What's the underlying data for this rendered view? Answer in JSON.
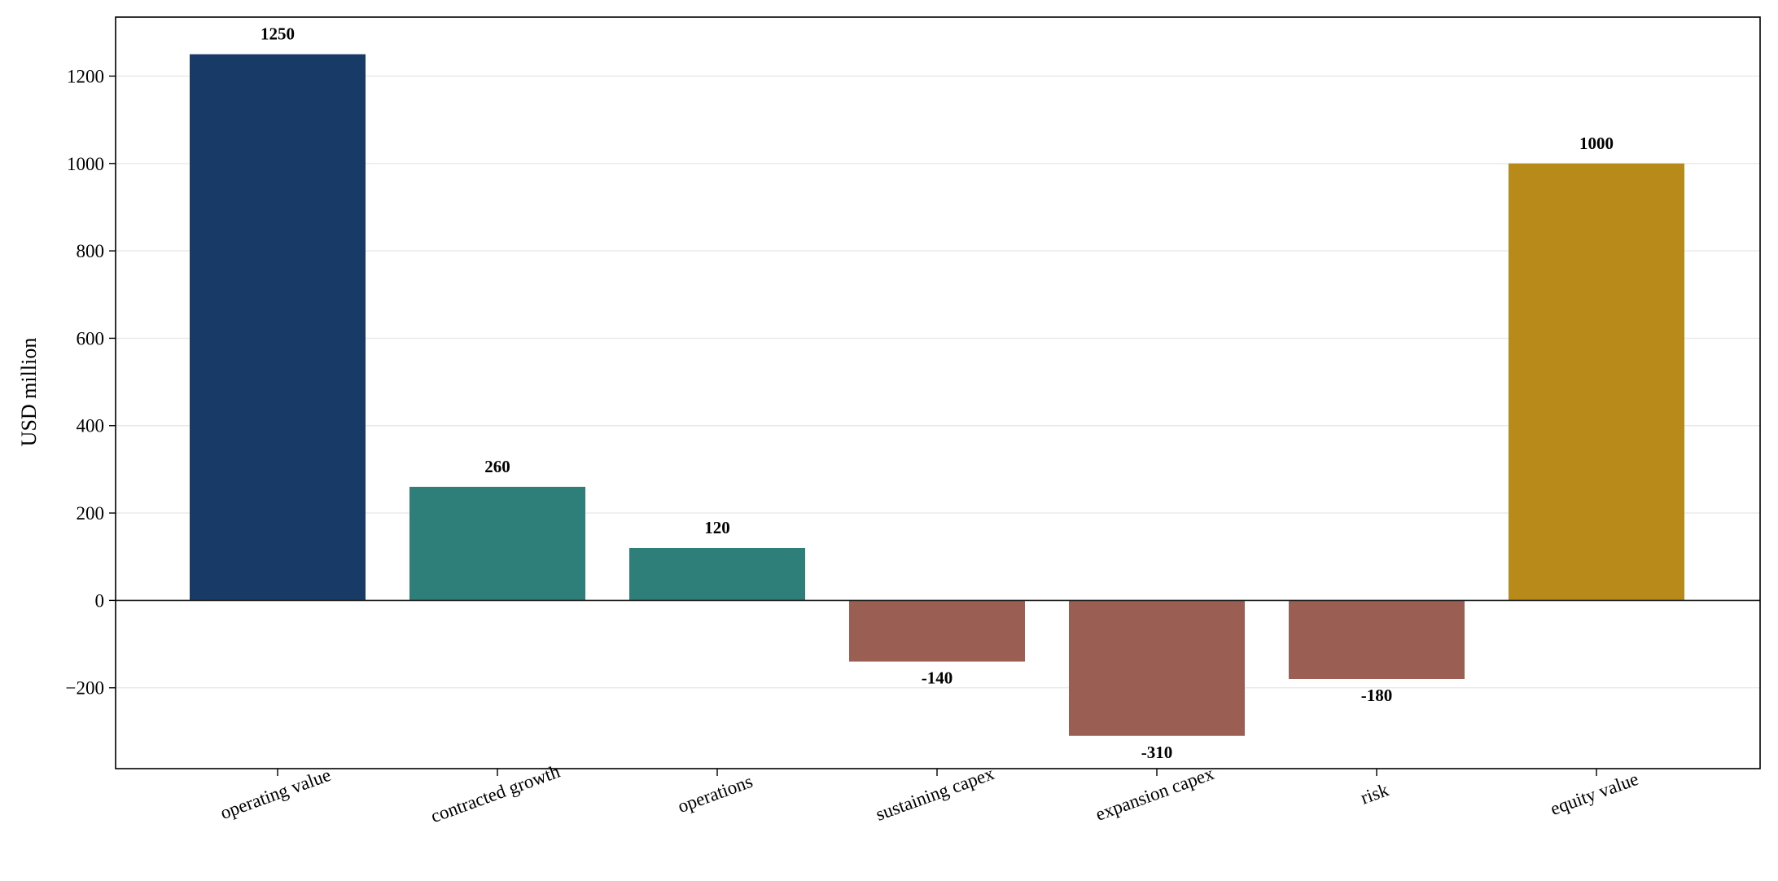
{
  "chart_data": {
    "type": "bar",
    "categories": [
      "operating value",
      "contracted growth",
      "operations",
      "sustaining capex",
      "expansion capex",
      "risk",
      "equity value"
    ],
    "values": [
      1250,
      260,
      120,
      -140,
      -310,
      -180,
      1000
    ],
    "data_labels": [
      "1250",
      "260",
      "120",
      "-140",
      "-310",
      "-180",
      "1000"
    ],
    "colors": [
      "#173a66",
      "#2e7f79",
      "#2e7f79",
      "#9b5e53",
      "#9b5e53",
      "#9b5e53",
      "#b78a1a"
    ],
    "title": "",
    "xlabel": "",
    "ylabel": "USD million",
    "ylim": [
      -385,
      1335
    ],
    "yticks": [
      -200,
      0,
      200,
      400,
      600,
      800,
      1000,
      1200
    ],
    "ytick_labels": [
      "−200",
      "0",
      "200",
      "400",
      "600",
      "800",
      "1000",
      "1200"
    ],
    "grid": "y",
    "zero_line": true,
    "xtick_rotation_deg": -20
  }
}
